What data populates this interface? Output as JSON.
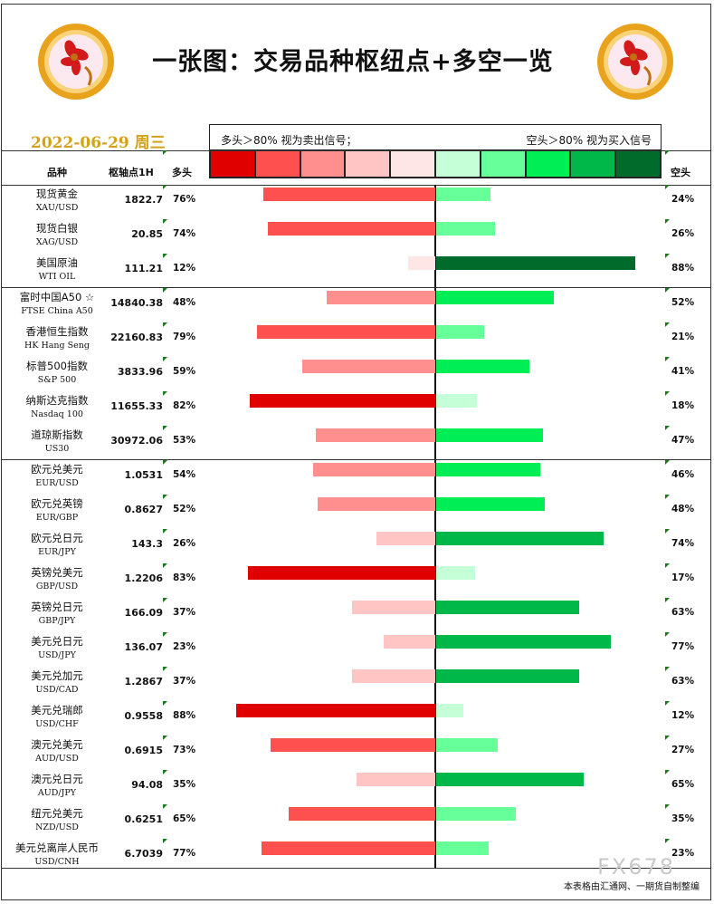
{
  "page": {
    "title": "一张图：交易品种枢纽点+多空一览",
    "date": "2022-06-29 周三",
    "legend_left": "多头＞80% 视为卖出信号；",
    "legend_right": "空头＞80% 视为买入信号",
    "header_name": "品种",
    "header_pivot": "枢轴点1H",
    "header_bull": "多头",
    "header_bear": "空头",
    "footer": "本表格由汇通网、一期货自制整编",
    "watermark": "FX678",
    "legend_colors": [
      "#e00000",
      "#ff5050",
      "#ff8f8f",
      "#ffc4c4",
      "#ffe6e6",
      "#c4ffd8",
      "#66ff99",
      "#00ee55",
      "#00b84a",
      "#006b2a"
    ]
  },
  "chart_data": {
    "type": "bar",
    "categories": [
      {
        "cn": "现货黄金",
        "en": "XAU/USD"
      },
      {
        "cn": "现货白银",
        "en": "XAG/USD"
      },
      {
        "cn": "美国原油",
        "en": "WTI OIL"
      },
      {
        "cn": "富时中国A50 ☆",
        "en": "FTSE China A50"
      },
      {
        "cn": "香港恒生指数",
        "en": "HK Hang Seng"
      },
      {
        "cn": "标普500指数",
        "en": "S&P 500"
      },
      {
        "cn": "纳斯达克指数",
        "en": "Nasdaq 100"
      },
      {
        "cn": "道琼斯指数",
        "en": "US30"
      },
      {
        "cn": "欧元兑美元",
        "en": "EUR/USD"
      },
      {
        "cn": "欧元兑英镑",
        "en": "EUR/GBP"
      },
      {
        "cn": "欧元兑日元",
        "en": "EUR/JPY"
      },
      {
        "cn": "英镑兑美元",
        "en": "GBP/USD"
      },
      {
        "cn": "英镑兑日元",
        "en": "GBP/JPY"
      },
      {
        "cn": "美元兑日元",
        "en": "USD/JPY"
      },
      {
        "cn": "美元兑加元",
        "en": "USD/CAD"
      },
      {
        "cn": "美元兑瑞郎",
        "en": "USD/CHF"
      },
      {
        "cn": "澳元兑美元",
        "en": "AUD/USD"
      },
      {
        "cn": "澳元兑日元",
        "en": "AUD/JPY"
      },
      {
        "cn": "纽元兑美元",
        "en": "NZD/USD"
      },
      {
        "cn": "美元兑离岸人民币",
        "en": "USD/CNH"
      }
    ],
    "pivot": [
      "1822.7",
      "20.85",
      "111.21",
      "14840.38",
      "22160.83",
      "3833.96",
      "11655.33",
      "30972.06",
      "1.0531",
      "0.8627",
      "143.3",
      "1.2206",
      "166.09",
      "136.07",
      "1.2867",
      "0.9558",
      "0.6915",
      "94.08",
      "0.6251",
      "6.7039"
    ],
    "series": [
      {
        "name": "多头",
        "values": [
          76,
          74,
          12,
          48,
          79,
          59,
          82,
          53,
          54,
          52,
          26,
          83,
          37,
          23,
          37,
          88,
          73,
          35,
          65,
          77
        ]
      },
      {
        "name": "空头",
        "values": [
          24,
          26,
          88,
          52,
          21,
          41,
          18,
          47,
          46,
          48,
          74,
          17,
          63,
          77,
          63,
          12,
          27,
          65,
          35,
          23
        ]
      }
    ],
    "group_breaks_after": [
      2,
      7
    ],
    "xlim": [
      0,
      100
    ]
  }
}
